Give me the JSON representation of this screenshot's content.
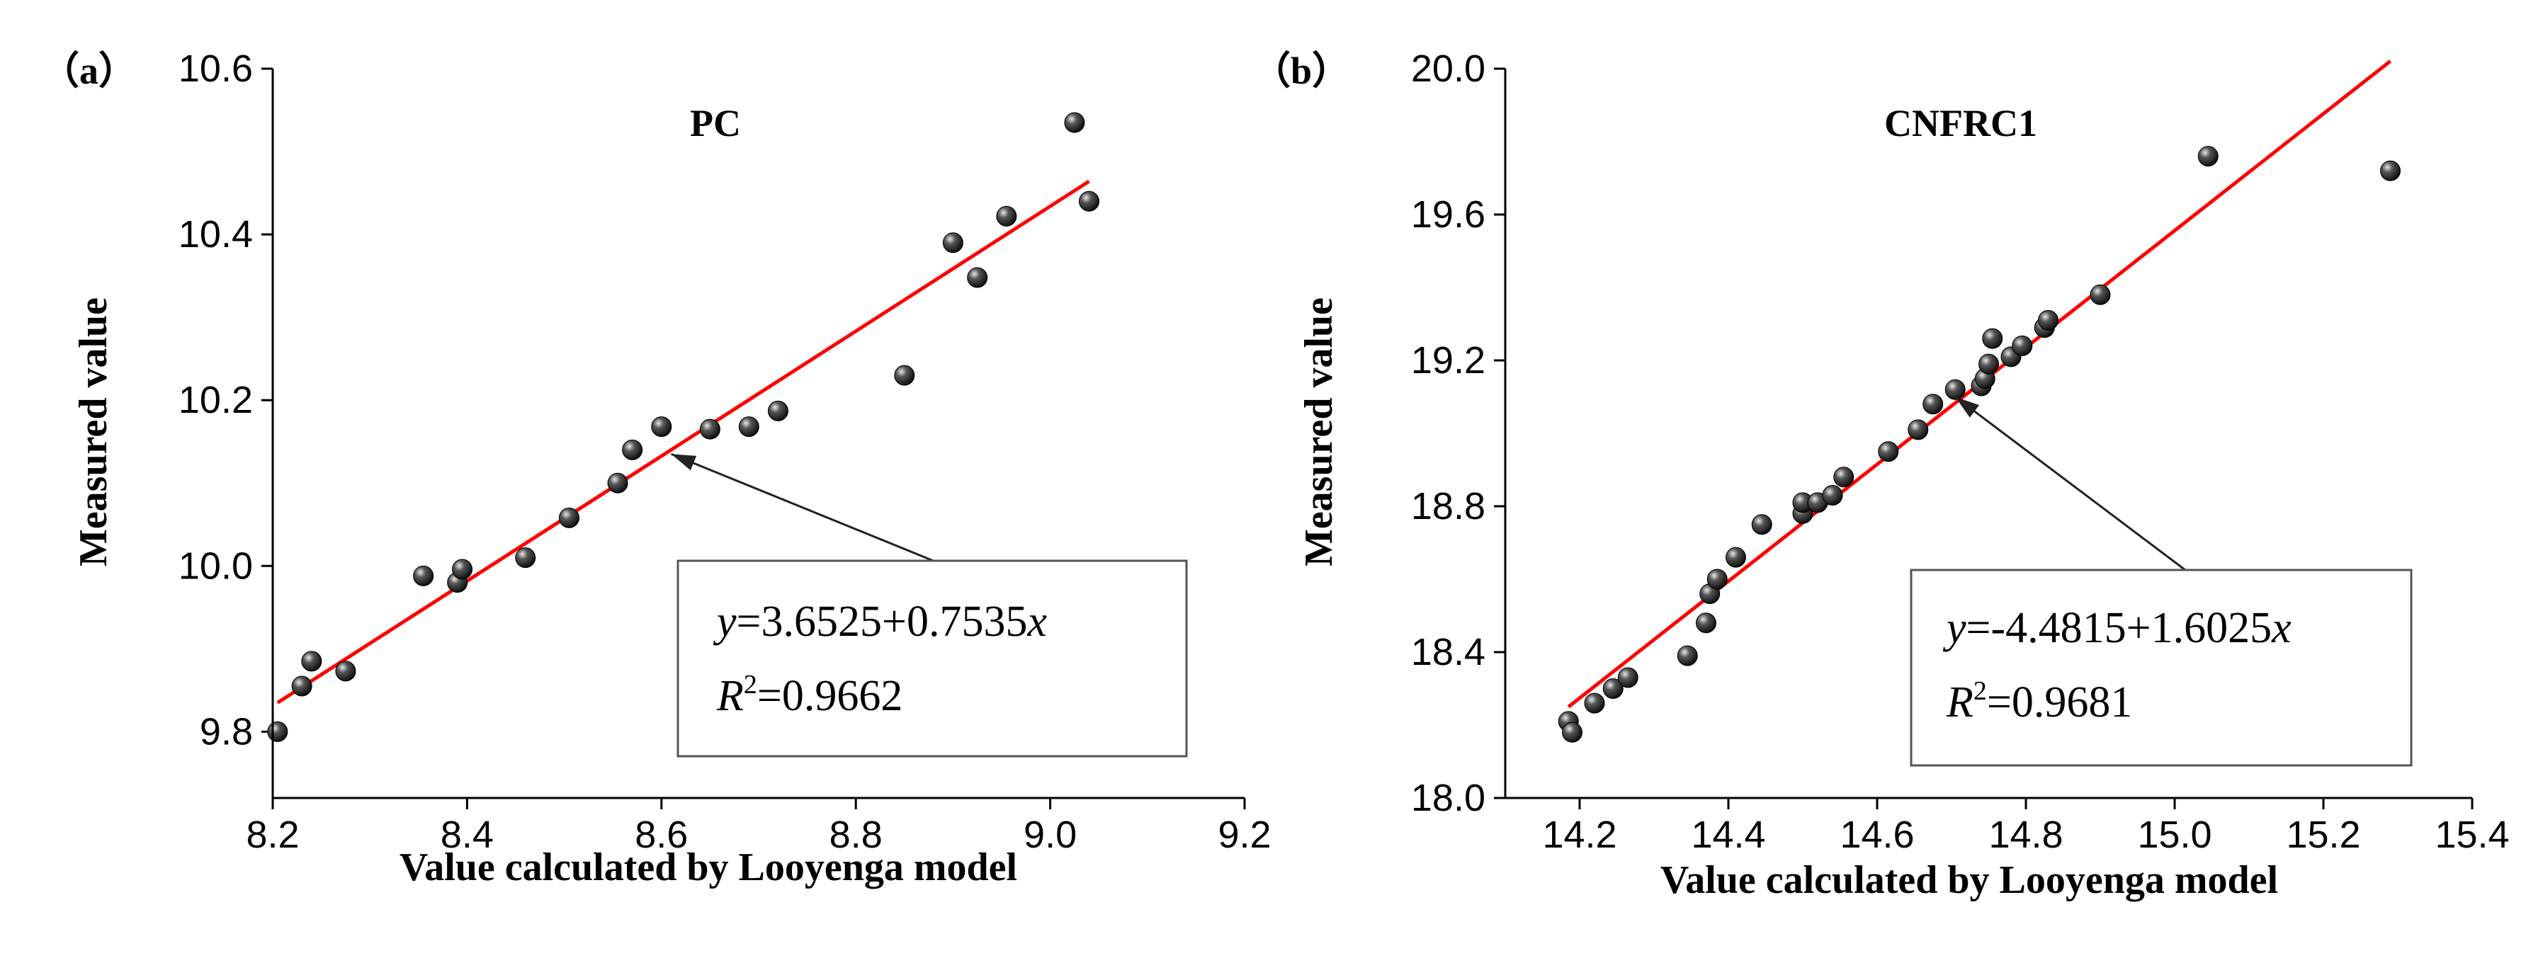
{
  "chart_data": [
    {
      "type": "scatter",
      "panel_label": "（a）",
      "title": "PC",
      "xlabel": "Value calculated by Looyenga model",
      "ylabel": "Measured value",
      "xlim": [
        8.2,
        9.2
      ],
      "ylim": [
        9.72,
        10.6
      ],
      "xticks": [
        "8.2",
        "8.4",
        "8.6",
        "8.8",
        "9.0",
        "9.2"
      ],
      "yticks": [
        "9.8",
        "10.0",
        "10.2",
        "10.4",
        "10.6"
      ],
      "points": {
        "x": [
          8.205,
          8.23,
          8.24,
          8.275,
          8.355,
          8.39,
          8.395,
          8.46,
          8.505,
          8.555,
          8.57,
          8.6,
          8.65,
          8.69,
          8.72,
          8.85,
          8.9,
          8.925,
          8.955,
          9.025,
          9.04
        ],
        "y": [
          9.8,
          9.855,
          9.885,
          9.873,
          9.988,
          9.98,
          9.996,
          10.01,
          10.058,
          10.1,
          10.14,
          10.168,
          10.165,
          10.168,
          10.187,
          10.23,
          10.39,
          10.348,
          10.422,
          10.535,
          10.44
        ]
      },
      "fit": {
        "intercept": 3.6525,
        "slope": 0.7535,
        "x_range": [
          8.205,
          9.04
        ]
      },
      "equation": "=3.6525+0.7535",
      "r2": "=0.9662",
      "arrow_target": [
        8.61,
        10.135
      ],
      "legend_position": "bottom-right",
      "marker_color": "#111111",
      "line_color": "#ff0000"
    },
    {
      "type": "scatter",
      "panel_label": "（b）",
      "title": "CNFRC1",
      "xlabel": "Value calculated by Looyenga model",
      "ylabel": "Measured value",
      "xlim": [
        14.1,
        15.4
      ],
      "ylim": [
        18.0,
        20.0
      ],
      "xticks": [
        "14.2",
        "14.4",
        "14.6",
        "14.8",
        "15.0",
        "15.2",
        "15.4"
      ],
      "yticks": [
        "18.0",
        "18.4",
        "18.8",
        "19.2",
        "19.6",
        "20.0"
      ],
      "points": {
        "x": [
          14.185,
          14.19,
          14.22,
          14.245,
          14.265,
          14.345,
          14.37,
          14.375,
          14.385,
          14.41,
          14.445,
          14.5,
          14.5,
          14.52,
          14.54,
          14.555,
          14.615,
          14.655,
          14.675,
          14.705,
          14.74,
          14.745,
          14.75,
          14.755,
          14.78,
          14.795,
          14.825,
          14.83,
          14.9,
          15.045,
          15.29
        ],
        "y": [
          18.21,
          18.18,
          18.26,
          18.3,
          18.33,
          18.39,
          18.48,
          18.56,
          18.6,
          18.66,
          18.75,
          18.78,
          18.81,
          18.81,
          18.83,
          18.88,
          18.95,
          19.01,
          19.08,
          19.12,
          19.13,
          19.15,
          19.19,
          19.26,
          19.21,
          19.24,
          19.29,
          19.31,
          19.38,
          19.76,
          19.72
        ]
      },
      "fit": {
        "intercept": -4.4815,
        "slope": 1.6025,
        "x_range": [
          14.185,
          15.29
        ]
      },
      "equation": "=-4.4815+1.6025",
      "r2": "=0.9681",
      "arrow_target": [
        14.705,
        19.1
      ],
      "legend_position": "bottom-right",
      "marker_color": "#111111",
      "line_color": "#ff0000"
    }
  ]
}
